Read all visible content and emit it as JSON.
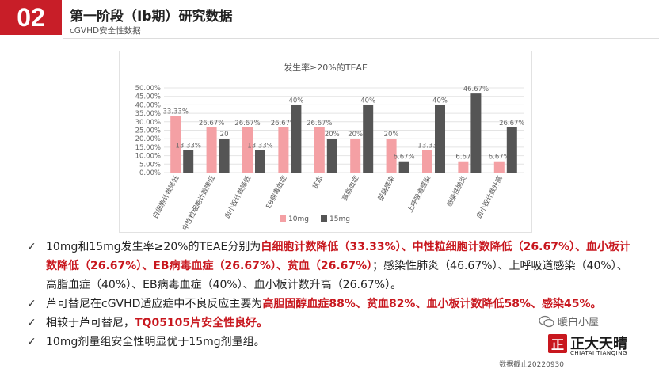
{
  "header": {
    "badge": "02",
    "title": "第一阶段（Ib期）研究数据",
    "subtitle": "cGVHD安全性数据"
  },
  "chart_data": {
    "type": "bar",
    "title": "发生率≥20%的TEAE",
    "categories": [
      "白细胞计数降低",
      "中性粒细胞计数降低",
      "血小板计数降低",
      "EB病毒血症",
      "贫血",
      "高脂血症",
      "尿路感染",
      "上呼吸道感染",
      "感染性肺炎",
      "血小板计数升高"
    ],
    "series": [
      {
        "name": "10mg",
        "values": [
          33.33,
          26.67,
          26.67,
          26.67,
          26.67,
          20,
          20,
          13.33,
          6.67,
          6.67
        ],
        "labels": [
          "33.33%",
          "26.67%",
          "26.67%",
          "26.67%",
          "26.67%",
          "20%",
          "20%",
          "13.33",
          "6.67",
          "6.67%"
        ],
        "color": "#f4a0a4"
      },
      {
        "name": "15mg",
        "values": [
          13.33,
          20,
          13.33,
          40,
          20,
          40,
          6.67,
          40,
          46.67,
          26.67
        ],
        "labels": [
          "13.33%",
          "20",
          "13.33%",
          "40%",
          "20%",
          "40%",
          "6.67%",
          "40%",
          "46.67%",
          "26.67%"
        ],
        "color": "#555555"
      }
    ],
    "ylim": [
      0,
      50
    ],
    "yticks": [
      "0.00%",
      "5.00%",
      "10.00%",
      "15.00%",
      "20.00%",
      "25.00%",
      "30.00%",
      "35.00%",
      "40.00%",
      "45.00%",
      "50.00%"
    ],
    "legend": "bottom"
  },
  "bullets": {
    "b1": {
      "t1": "10mg和15mg发生率≥20%的TEAE分别为",
      "r1": "白细胞计数降低（33.33%）、中性粒细胞计数降低（26.67%）、血小板计数降低（26.67%）、EB病毒血症（26.67%）、贫血（26.67%）",
      "t2": "；感染性肺炎（46.67%）、上呼吸道感染（40%）、高脂血症（40%）、EB病毒血症（40%）、血小板计数升高（26.67%）。"
    },
    "b2": {
      "t1": "芦可替尼在cGVHD适应症中不良反应主要为",
      "r1": "高胆固醇血症88%、贫血82%、血小板计数降低58%、感染45%。"
    },
    "b3": {
      "t1": "相较于芦可替尼，",
      "r1": "TQ05105片安全性良好。"
    },
    "b4": {
      "t1": "10mg剂量组安全性明显优于15mg剂量组。"
    },
    "check": "✓"
  },
  "brand": {
    "wechat": "暖白小屋",
    "logo_mark": "正",
    "logo_text": "正大天晴",
    "logo_sub": "CHIATAI TIANQING"
  },
  "footnote": "数据截止20220930"
}
